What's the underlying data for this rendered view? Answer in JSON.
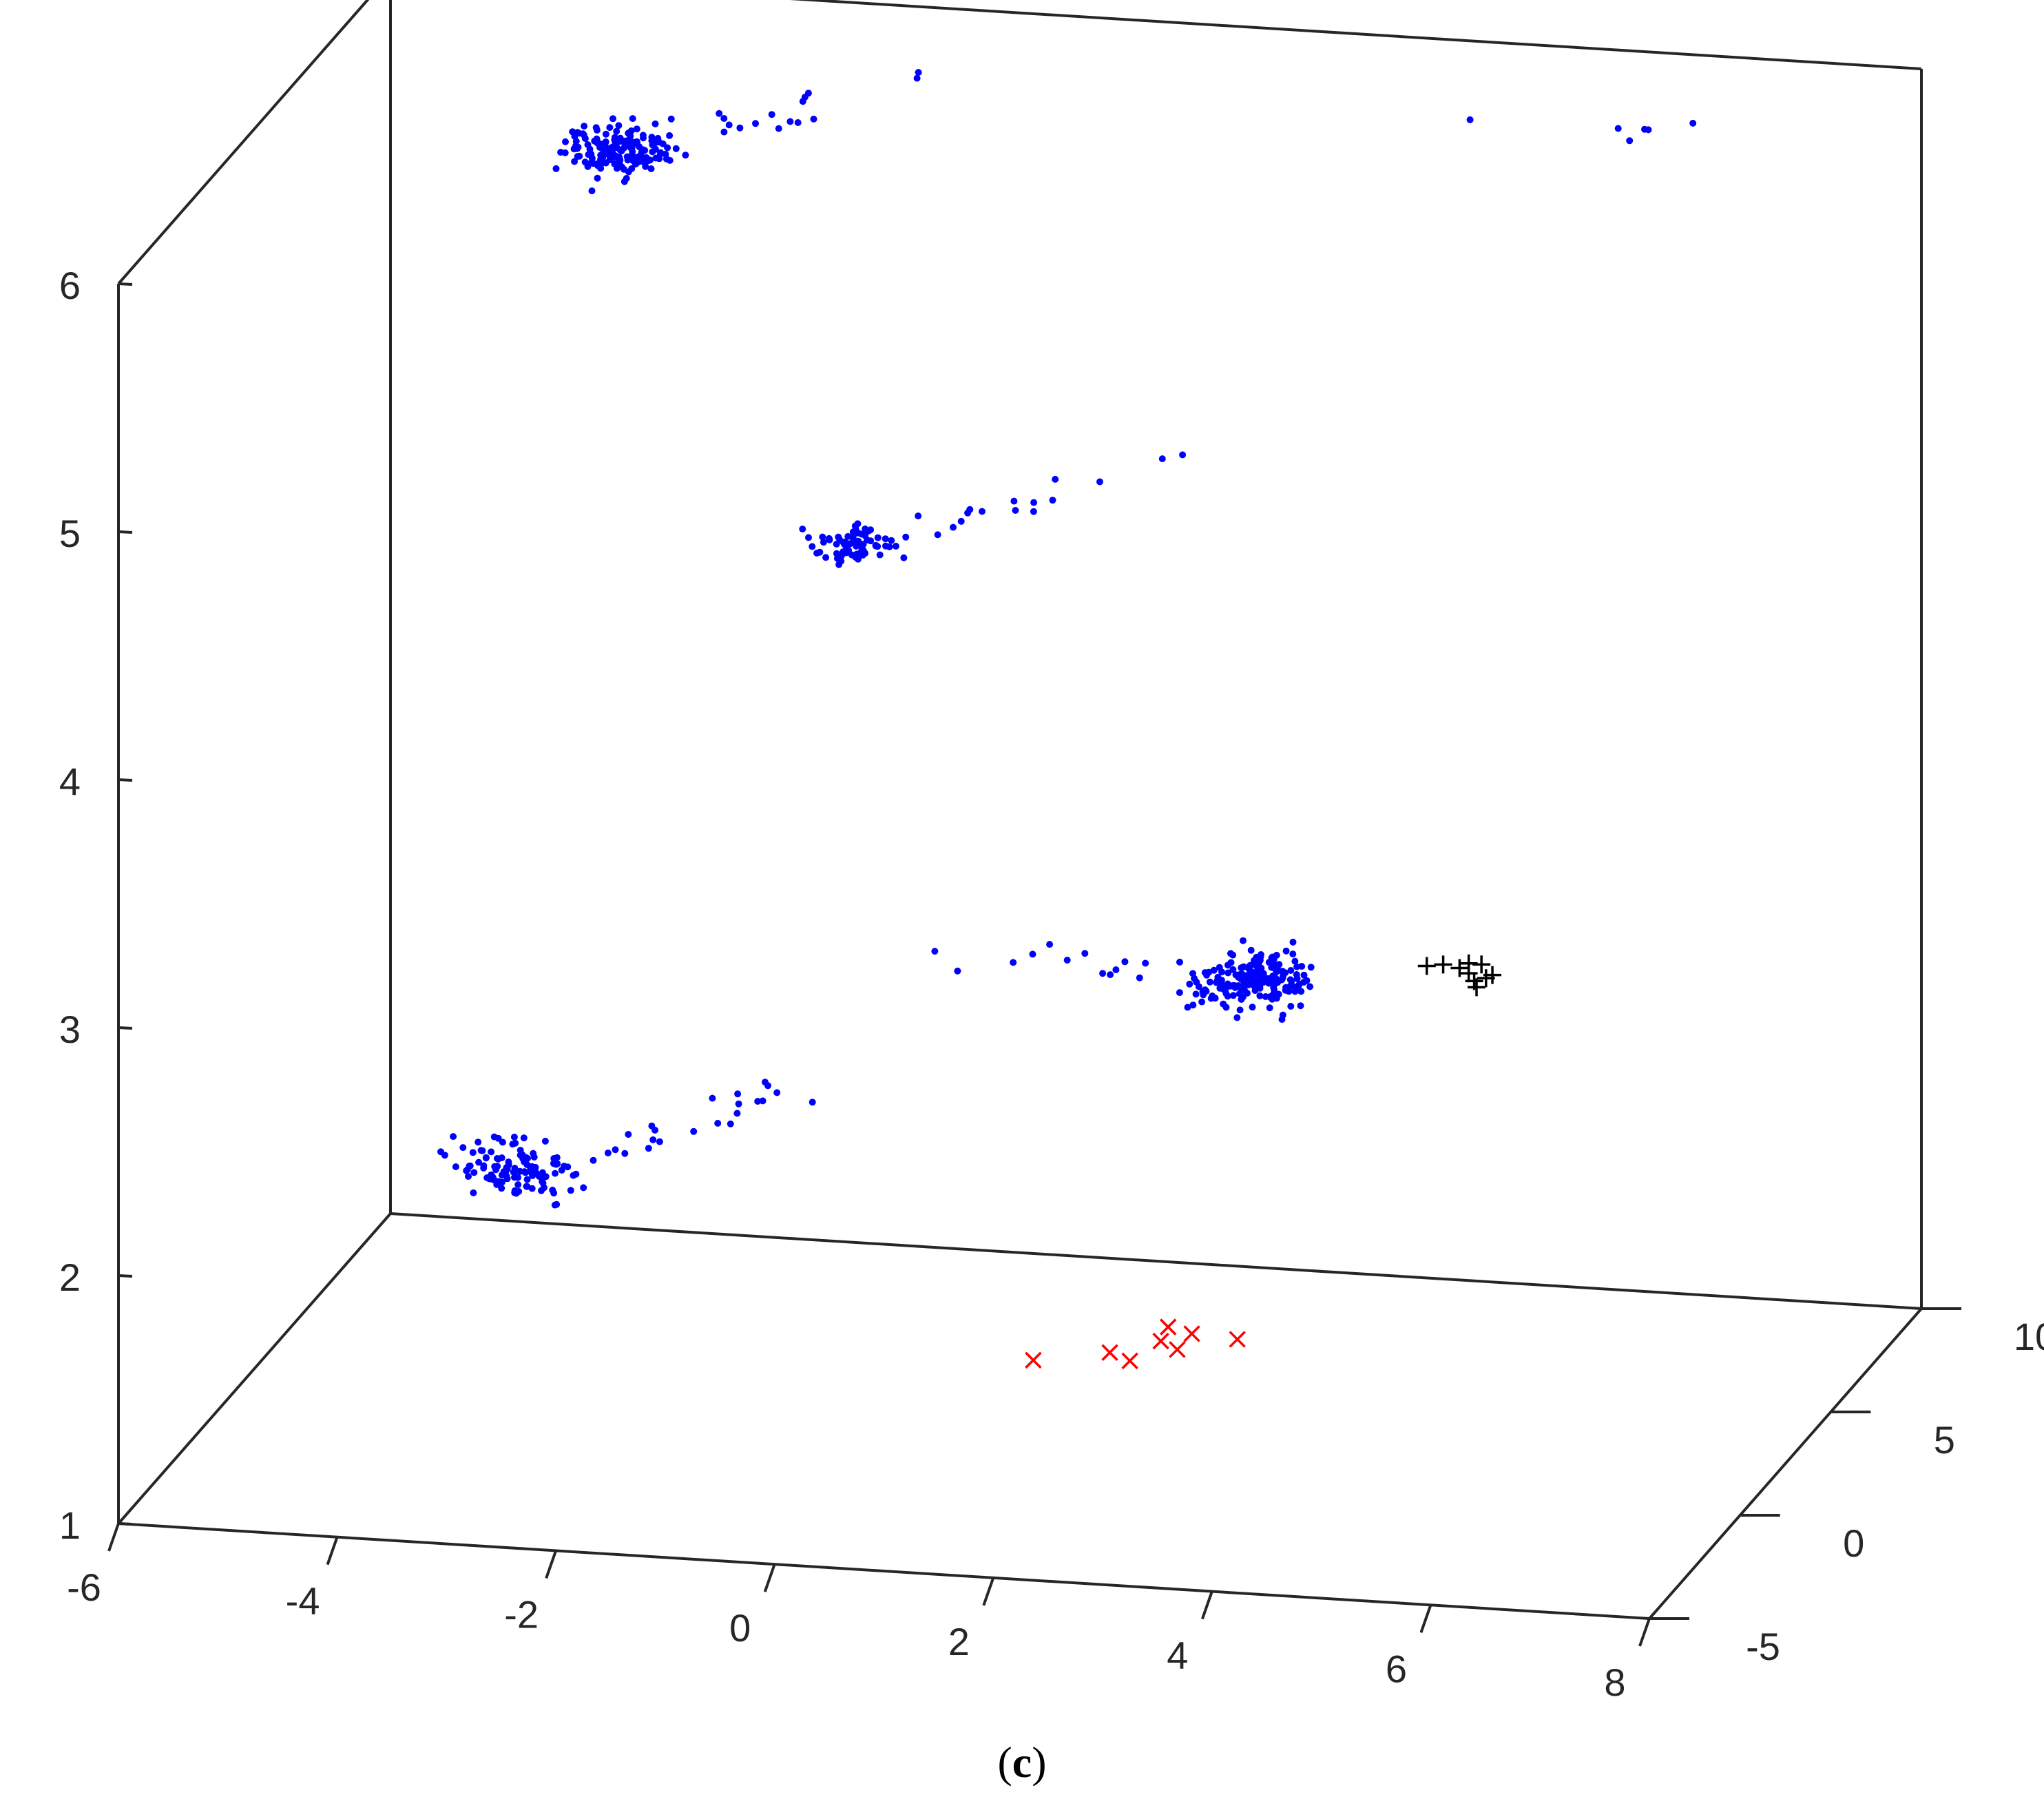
{
  "chart_data": {
    "type": "scatter",
    "projection": "3d",
    "caption": {
      "open": "(",
      "letter": "c",
      "close": ")"
    },
    "title": "",
    "xlabel": "",
    "ylabel": "",
    "zlabel": "",
    "xlim": [
      -6,
      8
    ],
    "ylim": [
      -5,
      10
    ],
    "zlim": [
      1,
      6
    ],
    "x_ticks": [
      "-6",
      "-4",
      "-2",
      "0",
      "2",
      "4",
      "6",
      "8"
    ],
    "y_ticks": [
      "-5",
      "0",
      "5",
      "10"
    ],
    "z_ticks": [
      "1",
      "2",
      "3",
      "4",
      "5",
      "6"
    ],
    "grid": false,
    "legend": "none",
    "series": [
      {
        "marker": "dot",
        "color": "#0000ff",
        "clusters": [
          {
            "center": [
              -3.8,
              9.4,
              5.4
            ],
            "spread": [
              0.25,
              0.3,
              0.04
            ],
            "count": 170,
            "tail": {
              "from": [
                -3.2,
                9.5,
                5.45
              ],
              "to": [
                -0.9,
                8.6,
                5.87
              ],
              "count": 16
            }
          },
          {
            "center": [
              -0.6,
              2.8,
              4.45
            ],
            "spread": [
              0.2,
              0.25,
              0.03
            ],
            "count": 70,
            "tail": {
              "from": [
                0.1,
                3.0,
                4.5
              ],
              "to": [
                2.5,
                2.4,
                4.9
              ],
              "count": 16
            }
          },
          {
            "center": [
              3.9,
              -1.9,
              3.2
            ],
            "spread": [
              0.25,
              0.5,
              0.035
            ],
            "count": 200,
            "tail": {
              "from": [
                0.5,
                -1.0,
                3.17
              ],
              "to": [
                3.2,
                -1.8,
                3.22
              ],
              "count": 12
            }
          },
          {
            "center": [
              -2.8,
              -2.5,
              2.3
            ],
            "spread": [
              0.3,
              0.3,
              0.05
            ],
            "count": 120,
            "tail": {
              "from": [
                -2.0,
                -2.6,
                2.4
              ],
              "to": [
                0.0,
                -3.0,
                2.8
              ],
              "count": 22
            }
          },
          {
            "center": [
              5.6,
              7.6,
              5.9
            ],
            "spread": [
              0.7,
              0.4,
              0.02
            ],
            "count": 6
          }
        ]
      },
      {
        "marker": "x",
        "color": "#ff0000",
        "points": [
          [
            2.2,
            -4.0,
            1.8
          ],
          [
            2.9,
            -4.0,
            1.85
          ],
          [
            3.1,
            -4.1,
            1.83
          ],
          [
            3.35,
            -3.9,
            1.9
          ],
          [
            3.4,
            -3.8,
            1.95
          ],
          [
            3.5,
            -3.9,
            1.87
          ],
          [
            3.6,
            -3.7,
            1.92
          ],
          [
            4.0,
            -3.6,
            1.9
          ]
        ]
      },
      {
        "marker": "plus",
        "color": "#000000",
        "points": [
          [
            5.5,
            -2.2,
            3.33
          ],
          [
            5.65,
            -2.2,
            3.34
          ],
          [
            5.8,
            -2.2,
            3.33
          ],
          [
            5.9,
            -2.3,
            3.32
          ],
          [
            6.0,
            -2.2,
            3.35
          ],
          [
            5.95,
            -2.3,
            3.29
          ],
          [
            6.05,
            -2.25,
            3.3
          ],
          [
            5.98,
            -2.35,
            3.27
          ],
          [
            6.1,
            -2.2,
            3.31
          ],
          [
            5.9,
            -2.3,
            3.36
          ]
        ]
      }
    ]
  }
}
